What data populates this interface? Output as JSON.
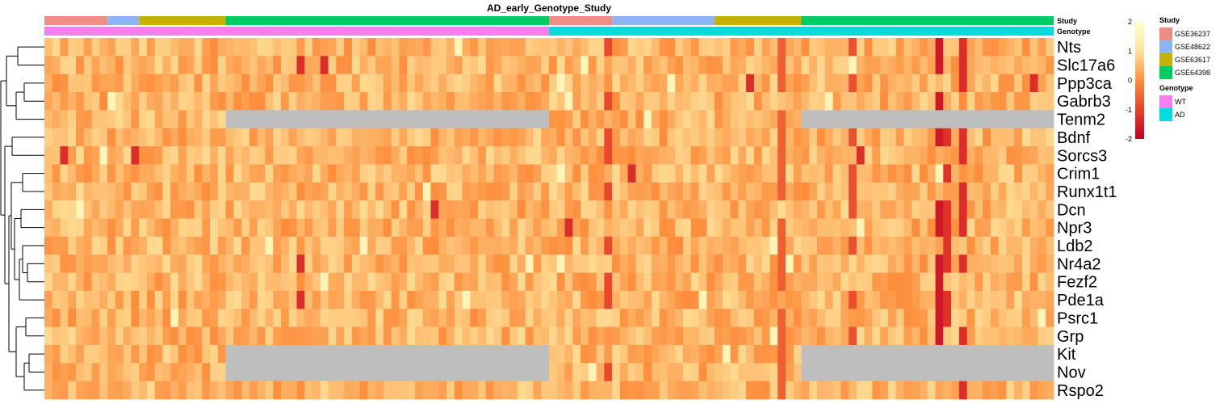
{
  "chart_data": {
    "type": "heatmap",
    "title": "AD_early_Genotype_Study",
    "rows": [
      "Nts",
      "Slc17a6",
      "Ppp3ca",
      "Gabrb3",
      "Tenm2",
      "Bdnf",
      "Sorcs3",
      "Crim1",
      "Runx1t1",
      "Dcn",
      "Npr3",
      "Ldb2",
      "Nr4a2",
      "Fezf2",
      "Pde1a",
      "Psrc1",
      "Grp",
      "Kit",
      "Nov",
      "Rspo2"
    ],
    "n_columns": 128,
    "missing_rows": [
      "Tenm2",
      "Kit",
      "Nov"
    ],
    "missing_column_blocks": [
      [
        23,
        63
      ],
      [
        96,
        127
      ]
    ],
    "annotation_rows": [
      {
        "name": "Study",
        "blocks": [
          {
            "level": "GSE36237",
            "start": 0,
            "end": 8
          },
          {
            "level": "GSE48622",
            "start": 8,
            "end": 12
          },
          {
            "level": "GSE63617",
            "start": 12,
            "end": 23
          },
          {
            "level": "GSE64398",
            "start": 23,
            "end": 64
          },
          {
            "level": "GSE36237",
            "start": 64,
            "end": 72
          },
          {
            "level": "GSE48622",
            "start": 72,
            "end": 85
          },
          {
            "level": "GSE63617",
            "start": 85,
            "end": 96
          },
          {
            "level": "GSE64398",
            "start": 96,
            "end": 128
          }
        ]
      },
      {
        "name": "Genotype",
        "blocks": [
          {
            "level": "WT",
            "start": 0,
            "end": 64
          },
          {
            "level": "AD",
            "start": 64,
            "end": 128
          }
        ]
      }
    ],
    "color_scale": {
      "range": [
        -2,
        2
      ],
      "ticks": [
        "2",
        "1",
        "0",
        "-1",
        "-2"
      ],
      "colors": [
        "#bd0026",
        "#e8402a",
        "#fd8d3c",
        "#fee39b",
        "#ffffcc"
      ]
    },
    "legends": [
      {
        "title": "Study",
        "items": [
          {
            "label": "GSE36237",
            "color": "#f08c84"
          },
          {
            "label": "GSE48622",
            "color": "#8cb4f4"
          },
          {
            "label": "GSE63617",
            "color": "#c8b000"
          },
          {
            "label": "GSE64398",
            "color": "#00cc66"
          }
        ]
      },
      {
        "title": "Genotype",
        "items": [
          {
            "label": "WT",
            "color": "#f77ef0"
          },
          {
            "label": "AD",
            "color": "#00dcdc"
          }
        ]
      }
    ],
    "missing_color": "#bebebe",
    "row_dendrogram": true
  }
}
